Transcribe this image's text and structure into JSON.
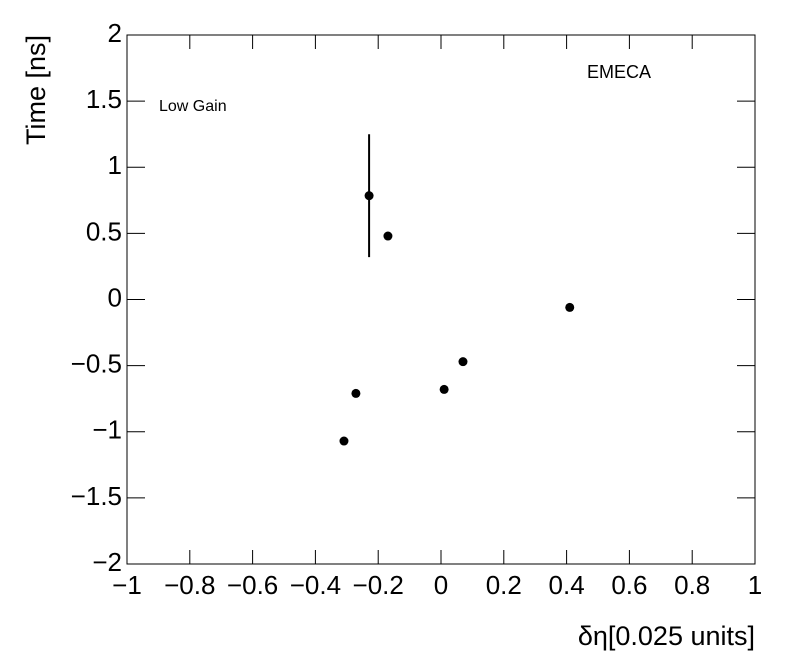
{
  "chart_data": {
    "type": "scatter",
    "xlabel": "δη[0.025 units]",
    "ylabel": "Time [ns]",
    "annotations": [
      "EMECA",
      "Low Gain"
    ],
    "color": "#000000",
    "x": [
      -0.309,
      -0.271,
      -0.229,
      -0.169,
      0.01,
      0.07,
      0.41
    ],
    "values": [
      -1.07,
      -0.71,
      0.785,
      0.48,
      -0.68,
      -0.47,
      -0.06
    ],
    "yerr": [
      null,
      null,
      0.465,
      null,
      null,
      null,
      null
    ],
    "xlim": [
      -1,
      1
    ],
    "ylim": [
      -2,
      2
    ],
    "xticks": [
      {
        "value": -1,
        "label": "−1"
      },
      {
        "value": -0.8,
        "label": "−0.8"
      },
      {
        "value": -0.6,
        "label": "−0.6"
      },
      {
        "value": -0.4,
        "label": "−0.4"
      },
      {
        "value": -0.2,
        "label": "−0.2"
      },
      0,
      0.2,
      0.4,
      0.6,
      0.8,
      1
    ],
    "yticks": [
      {
        "value": -2,
        "label": "−2"
      },
      {
        "value": -1.5,
        "label": "−1.5"
      },
      {
        "value": -1,
        "label": "−1"
      },
      {
        "value": -0.5,
        "label": "−0.5"
      },
      0,
      0.5,
      1,
      1.5,
      2
    ]
  }
}
